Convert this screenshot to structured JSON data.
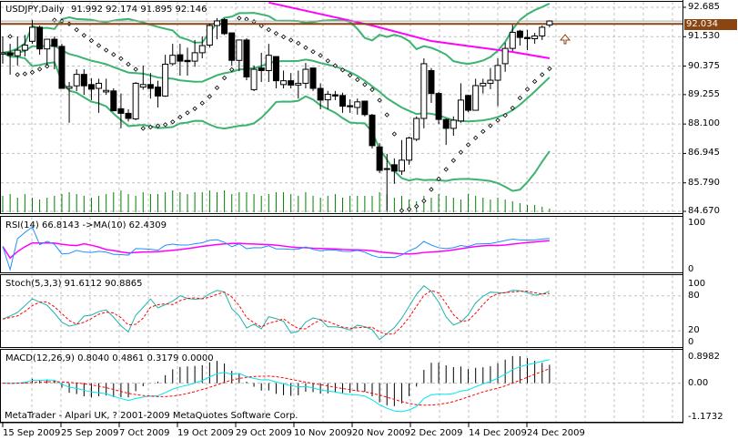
{
  "window": {
    "title": "USDJPY,Daily",
    "ohlc_readout": "91.992 92.174 91.895 92.146",
    "copyright": "MetaTrader - Alpari UK, ? 2001-2009 MetaQuotes Software Corp."
  },
  "colors": {
    "bull": "#ffffff",
    "bear": "#000000",
    "bollinger": "#3cb371",
    "long_ma": "#ff00ff",
    "volume": "#008000",
    "rsi": "#1e90ff",
    "rsi_ma": "#ff00ff",
    "stoch_main": "#20b2aa",
    "stoch_signal": "#ff0000",
    "macd_line": "#00e5ee",
    "macd_signal": "#ff0000",
    "macd_hist": "#000000",
    "current_price": "#8b4513",
    "grid": "#c0c0c0"
  },
  "chart_data": [
    {
      "type": "candlestick",
      "title": "USDJPY,Daily",
      "ylim": [
        84.67,
        92.685
      ],
      "y_ticks": [
        "92.685",
        "91.530",
        "90.375",
        "89.255",
        "88.100",
        "86.945",
        "85.790",
        "84.670"
      ],
      "current_price": "92.034",
      "x_tick_labels": [
        "15 Sep 2009",
        "25 Sep 2009",
        "7 Oct 2009",
        "19 Oct 2009",
        "29 Oct 2009",
        "10 Nov 2009",
        "20 Nov 2009",
        "2 Dec 2009",
        "14 Dec 2009",
        "24 Dec 2009"
      ],
      "grid": true,
      "overlays": [
        "Bollinger Bands",
        "Moving Average",
        "Parabolic SAR",
        "Volumes"
      ],
      "candles_ohlc": [
        [
          90.85,
          91.54,
          90.47,
          90.9
        ],
        [
          90.9,
          91.25,
          90.04,
          90.8
        ],
        [
          90.78,
          91.54,
          90.4,
          91.0
        ],
        [
          91.0,
          91.6,
          90.75,
          91.2
        ],
        [
          91.35,
          92.18,
          91.25,
          91.9
        ],
        [
          91.9,
          91.97,
          90.82,
          91.05
        ],
        [
          91.05,
          91.45,
          90.4,
          91.43
        ],
        [
          91.43,
          91.54,
          90.25,
          91.15
        ],
        [
          91.15,
          91.25,
          89.5,
          89.5
        ],
        [
          89.5,
          89.75,
          88.15,
          89.57
        ],
        [
          89.6,
          90.25,
          89.39,
          90.05
        ],
        [
          90.05,
          90.25,
          89.25,
          89.6
        ],
        [
          89.65,
          89.9,
          89.04,
          89.47
        ],
        [
          89.5,
          89.88,
          88.54,
          89.7
        ],
        [
          89.36,
          89.88,
          89.25,
          89.42
        ],
        [
          89.4,
          89.5,
          88.6,
          88.62
        ],
        [
          88.7,
          89.3,
          87.93,
          88.52
        ],
        [
          88.52,
          88.68,
          88.2,
          88.32
        ],
        [
          88.3,
          89.75,
          88.25,
          89.7
        ],
        [
          89.55,
          90.4,
          89.45,
          89.65
        ],
        [
          89.65,
          90.1,
          89.1,
          89.5
        ],
        [
          89.55,
          89.8,
          88.75,
          89.2
        ],
        [
          89.2,
          90.82,
          89.17,
          90.45
        ],
        [
          90.47,
          91.25,
          90.4,
          90.8
        ],
        [
          90.82,
          91.25,
          90.0,
          90.57
        ],
        [
          90.6,
          91.1,
          90.0,
          90.55
        ],
        [
          90.57,
          91.4,
          90.35,
          90.9
        ],
        [
          90.9,
          91.54,
          90.68,
          91.18
        ],
        [
          91.2,
          92.04,
          91.1,
          91.97
        ],
        [
          91.97,
          92.26,
          91.43,
          92.15
        ],
        [
          92.2,
          92.26,
          91.6,
          91.65
        ],
        [
          91.68,
          91.68,
          90.4,
          90.6
        ],
        [
          90.6,
          91.4,
          90.18,
          91.4
        ],
        [
          91.4,
          91.47,
          89.82,
          89.95
        ],
        [
          89.45,
          90.4,
          89.39,
          90.25
        ],
        [
          90.3,
          90.9,
          89.75,
          90.2
        ],
        [
          90.2,
          91.25,
          89.75,
          90.8
        ],
        [
          90.75,
          90.75,
          89.5,
          89.8
        ],
        [
          89.65,
          90.2,
          89.5,
          89.8
        ],
        [
          89.8,
          90.1,
          89.5,
          89.63
        ],
        [
          89.63,
          90.2,
          89.1,
          89.7
        ],
        [
          89.7,
          90.5,
          89.5,
          90.25
        ],
        [
          90.3,
          90.3,
          89.4,
          89.5
        ],
        [
          89.5,
          89.7,
          88.68,
          89.04
        ],
        [
          89.05,
          89.4,
          88.68,
          89.27
        ],
        [
          89.25,
          89.4,
          89.04,
          89.2
        ],
        [
          89.22,
          89.33,
          88.54,
          88.8
        ],
        [
          88.82,
          89.07,
          88.54,
          88.78
        ],
        [
          88.75,
          89.1,
          88.47,
          88.97
        ],
        [
          89.0,
          89.0,
          88.4,
          88.47
        ],
        [
          88.45,
          88.5,
          87.14,
          87.25
        ],
        [
          87.2,
          87.35,
          86.17,
          86.28
        ],
        [
          86.35,
          86.93,
          84.7,
          86.32
        ],
        [
          86.5,
          86.75,
          85.75,
          86.25
        ],
        [
          86.25,
          87.47,
          86.1,
          86.68
        ],
        [
          86.68,
          87.6,
          86.5,
          87.55
        ],
        [
          87.5,
          88.4,
          87.43,
          88.32
        ],
        [
          88.32,
          90.68,
          87.93,
          90.47
        ],
        [
          90.2,
          90.3,
          88.93,
          89.3
        ],
        [
          89.3,
          89.36,
          88.1,
          88.28
        ],
        [
          88.28,
          88.32,
          87.28,
          87.93
        ],
        [
          87.93,
          88.4,
          87.64,
          88.25
        ],
        [
          88.22,
          89.7,
          88.15,
          89.04
        ],
        [
          89.22,
          89.25,
          88.57,
          88.64
        ],
        [
          88.64,
          89.88,
          88.64,
          89.61
        ],
        [
          89.6,
          89.88,
          89.3,
          89.7
        ],
        [
          89.7,
          90.3,
          89.47,
          89.82
        ],
        [
          89.82,
          90.68,
          88.8,
          90.4
        ],
        [
          90.47,
          91.3,
          90.15,
          91.07
        ],
        [
          91.07,
          92.0,
          90.97,
          91.7
        ],
        [
          91.75,
          91.8,
          91.18,
          91.5
        ],
        [
          91.5,
          91.8,
          91.0,
          91.45
        ],
        [
          91.45,
          91.68,
          91.25,
          91.56
        ],
        [
          91.56,
          91.97,
          91.4,
          91.9
        ],
        [
          91.992,
          92.174,
          91.895,
          92.146
        ]
      ],
      "volumes": [
        18,
        20,
        16,
        20,
        16,
        14,
        16,
        18,
        20,
        22,
        20,
        18,
        16,
        18,
        20,
        22,
        24,
        20,
        18,
        22,
        20,
        20,
        22,
        24,
        22,
        20,
        22,
        22,
        24,
        22,
        24,
        20,
        22,
        22,
        20,
        18,
        20,
        22,
        22,
        20,
        18,
        22,
        18,
        16,
        18,
        20,
        16,
        18,
        18,
        18,
        18,
        22,
        20,
        16,
        18,
        14,
        12,
        18,
        16,
        20,
        18,
        16,
        14,
        20,
        18,
        16,
        14,
        16,
        14,
        12,
        10,
        8,
        8,
        6,
        4
      ],
      "long_ma_points": [
        [
          36,
          92.87
        ],
        [
          50,
          91.97
        ],
        [
          58,
          91.36
        ],
        [
          69,
          90.93
        ],
        [
          74,
          90.68
        ]
      ]
    },
    {
      "type": "line",
      "label": "RSI(14) 66.8143  ->MA(10) 62.4309",
      "ylim": [
        0,
        100
      ],
      "y_ticks": [
        "100",
        "0"
      ]
    },
    {
      "type": "line",
      "label": "Stoch(5,3,3) 91.6112 90.8865",
      "ylim": [
        0,
        100
      ],
      "y_ticks": [
        "100",
        "80",
        "20",
        "0"
      ]
    },
    {
      "type": "bar+line",
      "label": "MACD(12,26,9) 0.8040 0.4861 0.3179 0.0000",
      "ylim": [
        -1.1732,
        0.8982
      ],
      "y_ticks": [
        "0.8982",
        "0.00",
        "-1.1732"
      ]
    }
  ]
}
